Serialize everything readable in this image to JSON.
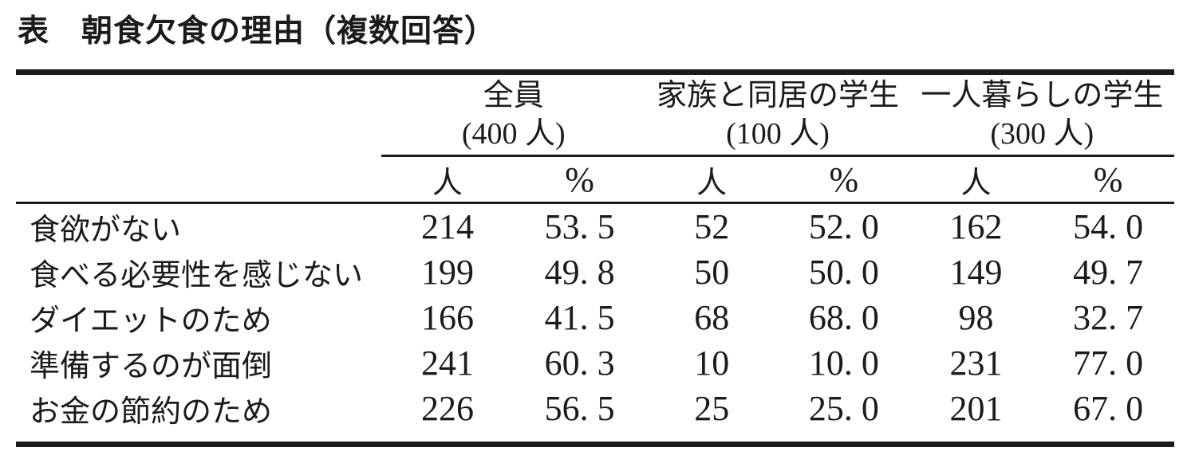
{
  "page": {
    "title": "表　朝食欠食の理由（複数回答）"
  },
  "table": {
    "groups": [
      {
        "name": "全員",
        "count": "(400 人)"
      },
      {
        "name": "家族と同居の学生",
        "count": "(100 人)"
      },
      {
        "name": "一人暮らしの学生",
        "count": "(300 人)"
      }
    ],
    "subheaders": [
      "人",
      "%",
      "人",
      "%",
      "人",
      "%"
    ],
    "rows": [
      {
        "label": "食欲がない",
        "values": [
          "214",
          "53. 5",
          "52",
          "52. 0",
          "162",
          "54. 0"
        ]
      },
      {
        "label": "食べる必要性を感じない",
        "values": [
          "199",
          "49. 8",
          "50",
          "50. 0",
          "149",
          "49. 7"
        ]
      },
      {
        "label": "ダイエットのため",
        "values": [
          "166",
          "41. 5",
          "68",
          "68. 0",
          "98",
          "32. 7"
        ]
      },
      {
        "label": "準備するのが面倒",
        "values": [
          "241",
          "60. 3",
          "10",
          "10. 0",
          "231",
          "77. 0"
        ]
      },
      {
        "label": "お金の節約のため",
        "values": [
          "226",
          "56. 5",
          "25",
          "25. 0",
          "201",
          "67. 0"
        ]
      }
    ]
  },
  "chart_data": {
    "type": "table",
    "title": "表　朝食欠食の理由（複数回答）",
    "row_labels": [
      "食欲がない",
      "食べる必要性を感じない",
      "ダイエットのため",
      "準備するのが面倒",
      "お金の節約のため"
    ],
    "columns": [
      "全員(400人) 人",
      "全員(400人) %",
      "家族と同居の学生(100人) 人",
      "家族と同居の学生(100人) %",
      "一人暮らしの学生(300人) 人",
      "一人暮らしの学生(300人) %"
    ],
    "rows": [
      [
        214,
        53.5,
        52,
        52.0,
        162,
        54.0
      ],
      [
        199,
        49.8,
        50,
        50.0,
        149,
        49.7
      ],
      [
        166,
        41.5,
        68,
        68.0,
        98,
        32.7
      ],
      [
        241,
        60.3,
        10,
        10.0,
        231,
        77.0
      ],
      [
        226,
        56.5,
        25,
        25.0,
        201,
        67.0
      ]
    ]
  },
  "colors": {
    "text": "#1b1b1b",
    "rule": "#1b1b1b",
    "background": "#ffffff"
  }
}
